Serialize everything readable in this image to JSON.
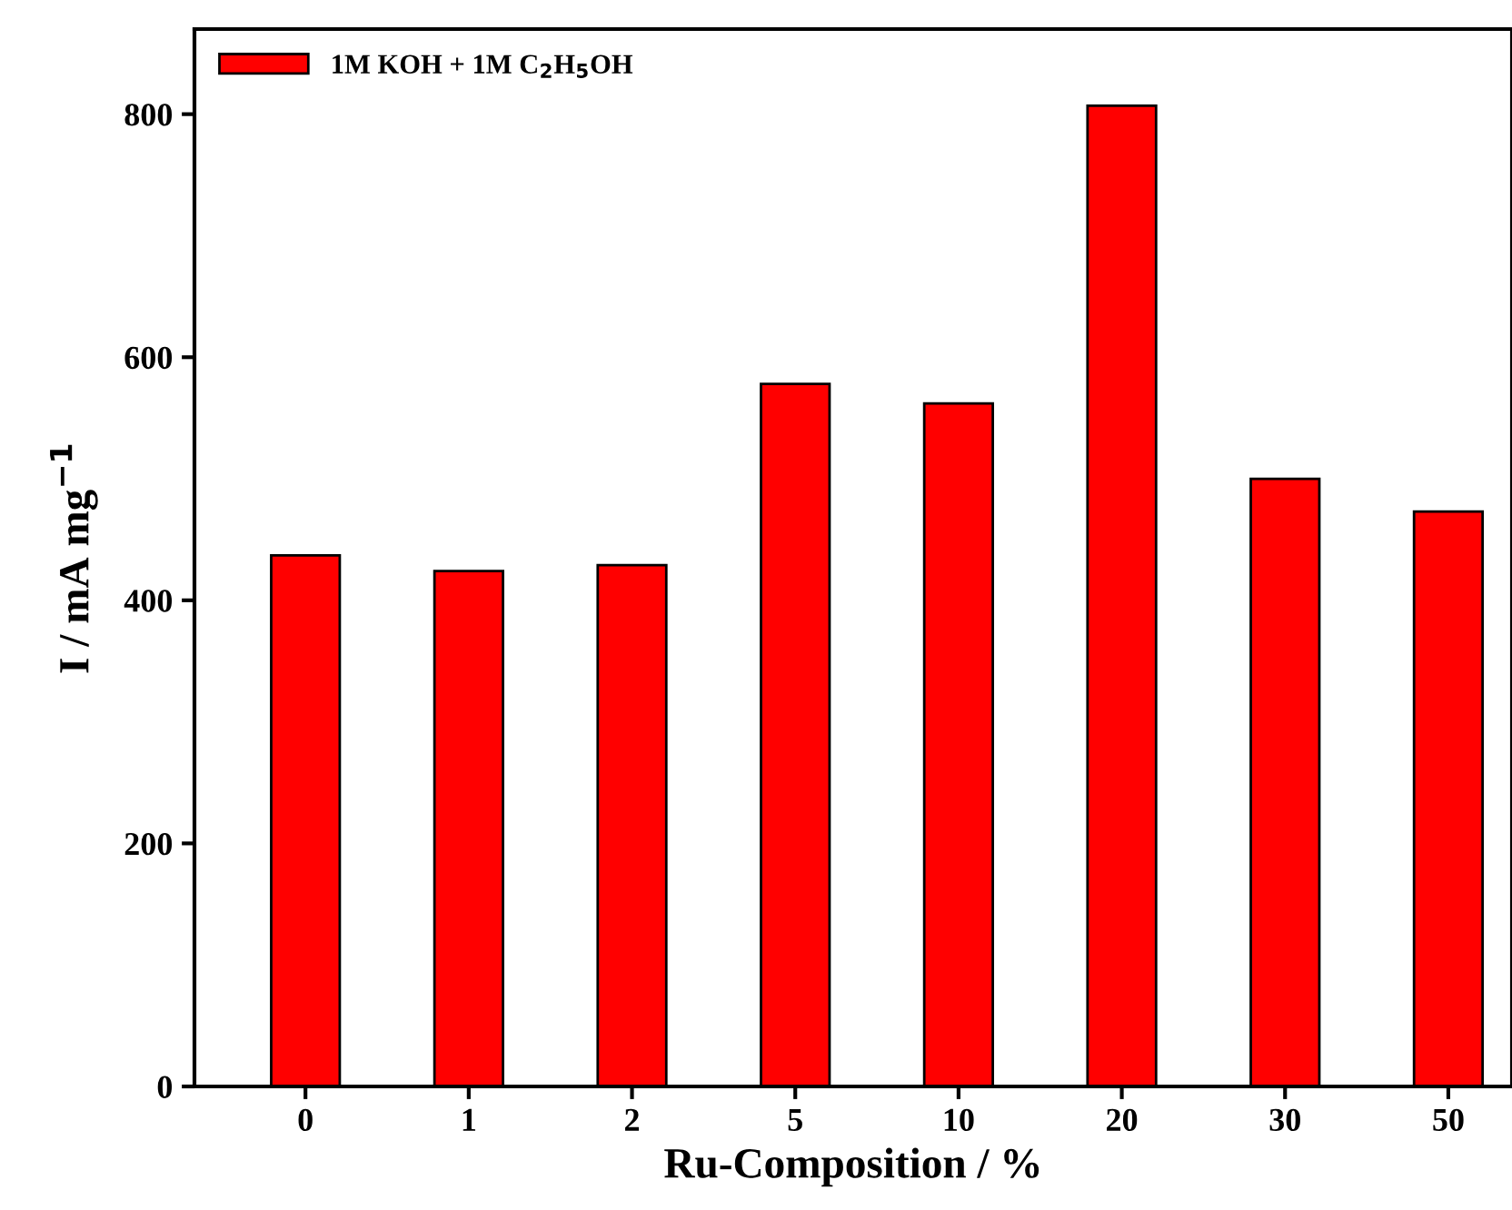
{
  "chart_data": {
    "type": "bar",
    "xlabel": "Ru-Composition / %",
    "ylabel": "I / mA mg$^{−1}$",
    "categories": [
      "0",
      "1",
      "2",
      "5",
      "10",
      "20",
      "30",
      "50"
    ],
    "series": [
      {
        "name": "1M KOH + 1M C$_{2}$H$_{5}$OH",
        "color": "#ff0000",
        "values": [
          437,
          424,
          429,
          578,
          562,
          807,
          500,
          473
        ]
      }
    ],
    "ylim": [
      0,
      870
    ],
    "yticks": [
      0,
      200,
      400,
      600,
      800
    ],
    "grid": false,
    "legend": "top left"
  }
}
